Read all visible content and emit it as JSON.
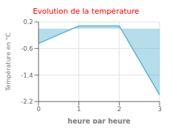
{
  "chart_data": {
    "type": "area",
    "title": "Evolution de la température",
    "xlabel": "heure par heure",
    "ylabel": "Température en °C",
    "x": [
      0,
      1,
      2,
      3
    ],
    "values": [
      -0.45,
      0.08,
      0.08,
      -2.0
    ],
    "color": "#5ab4d0",
    "xlim": [
      0,
      3
    ],
    "ylim": [
      -2.2,
      0.2
    ],
    "xticks": [
      0,
      1,
      2,
      3
    ],
    "yticks": [
      0.2,
      -0.6,
      -1.4,
      -2.2
    ],
    "grid": true
  }
}
